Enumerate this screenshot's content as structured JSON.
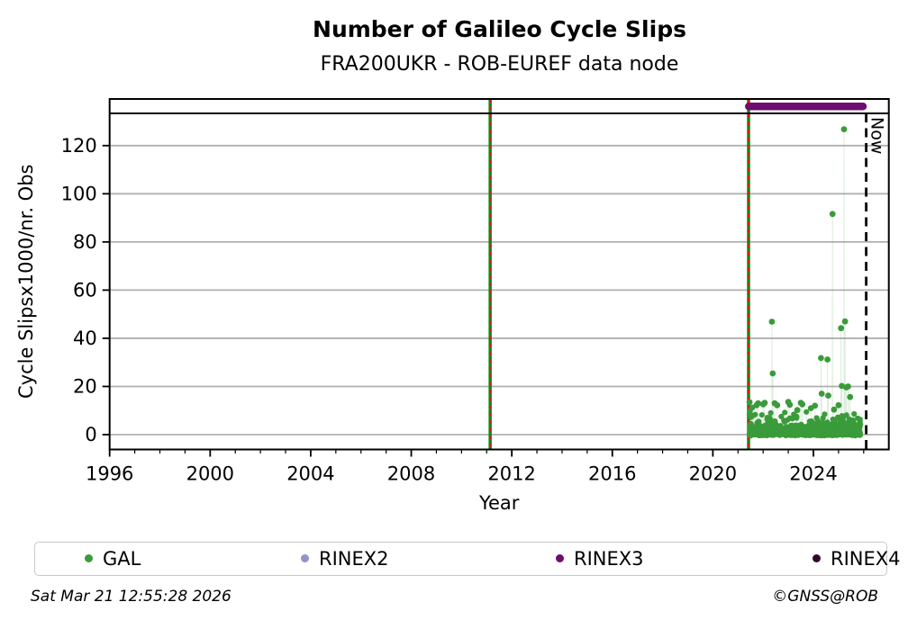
{
  "title": "Number of Galileo Cycle Slips",
  "subtitle": "FRA200UKR - ROB-EUREF data node",
  "footer": {
    "timestamp": "Sat Mar 21 12:55:28 2026",
    "credit": "©GNSS@ROB"
  },
  "colors": {
    "gal": "#3a9b3a",
    "gal_line": "#3a9b3a",
    "rinex2": "#9191cc",
    "rinex3": "#6f0c6f",
    "rinex4": "#2e0b2a",
    "event_green": "#0f8a0f",
    "event_red": "#e01515",
    "grid": "#b0b0b0",
    "axis": "#000000",
    "now_line": "#000000"
  },
  "legend": {
    "items": [
      {
        "label": "GAL",
        "color_key": "gal"
      },
      {
        "label": "RINEX2",
        "color_key": "rinex2"
      },
      {
        "label": "RINEX3",
        "color_key": "rinex3"
      },
      {
        "label": "RINEX4",
        "color_key": "rinex4"
      }
    ]
  },
  "chart_data": {
    "type": "scatter",
    "title": "Number of Galileo Cycle Slips",
    "subtitle": "FRA200UKR - ROB-EUREF data node",
    "xlabel": "Year",
    "ylabel": "Cycle Slipsx1000/nr. Obs",
    "xlim": [
      1996,
      2027
    ],
    "ylim": [
      -6.2,
      133.4
    ],
    "xticks": [
      1996,
      2000,
      2004,
      2008,
      2012,
      2016,
      2020,
      2024
    ],
    "xtick_minor_step": 1,
    "yticks": [
      0,
      20,
      40,
      60,
      80,
      100,
      120
    ],
    "grid": "horizontal",
    "now_x": 2026.1,
    "now_label": "Now",
    "event_lines_x": [
      2011.14,
      2021.42
    ],
    "rinex3_bar": {
      "start": 2021.43,
      "end": 2025.97,
      "row": "top-strip"
    },
    "series": [
      {
        "name": "GAL",
        "features": [
          [
            2021.46,
            13.5
          ],
          [
            2021.48,
            9.8
          ],
          [
            2021.52,
            7.2
          ],
          [
            2021.56,
            11.2
          ],
          [
            2021.62,
            8.0
          ],
          [
            2021.74,
            12.2
          ],
          [
            2021.8,
            13.0
          ],
          [
            2021.95,
            8.2
          ],
          [
            2022.0,
            12.6
          ],
          [
            2022.06,
            13.2
          ],
          [
            2022.16,
            6.4
          ],
          [
            2022.3,
            9.0
          ],
          [
            2022.35,
            46.9
          ],
          [
            2022.38,
            25.4
          ],
          [
            2022.46,
            13.0
          ],
          [
            2022.56,
            12.2
          ],
          [
            2022.72,
            7.5
          ],
          [
            2022.86,
            9.2
          ],
          [
            2023.0,
            13.6
          ],
          [
            2023.06,
            12.4
          ],
          [
            2023.22,
            8.4
          ],
          [
            2023.36,
            10.2
          ],
          [
            2023.5,
            13.2
          ],
          [
            2023.56,
            12.6
          ],
          [
            2023.72,
            9.4
          ],
          [
            2023.9,
            11.0
          ],
          [
            2024.06,
            12.0
          ],
          [
            2024.3,
            31.8
          ],
          [
            2024.33,
            17.0
          ],
          [
            2024.56,
            31.2
          ],
          [
            2024.59,
            16.2
          ],
          [
            2024.76,
            91.6
          ],
          [
            2024.82,
            10.4
          ],
          [
            2025.0,
            12.2
          ],
          [
            2025.1,
            44.2
          ],
          [
            2025.13,
            20.2
          ],
          [
            2025.22,
            126.8
          ],
          [
            2025.26,
            47.0
          ],
          [
            2025.31,
            19.6
          ],
          [
            2025.38,
            20.0
          ],
          [
            2025.46,
            15.6
          ],
          [
            2025.62,
            8.6
          ],
          [
            2025.76,
            6.8
          ],
          [
            2025.85,
            5.4
          ]
        ],
        "baseline_noise": {
          "count": 780,
          "x_start": 2021.45,
          "x_end": 2025.88,
          "value_range_mostly": [
            0,
            6
          ],
          "seed": 20260321
        }
      }
    ]
  }
}
